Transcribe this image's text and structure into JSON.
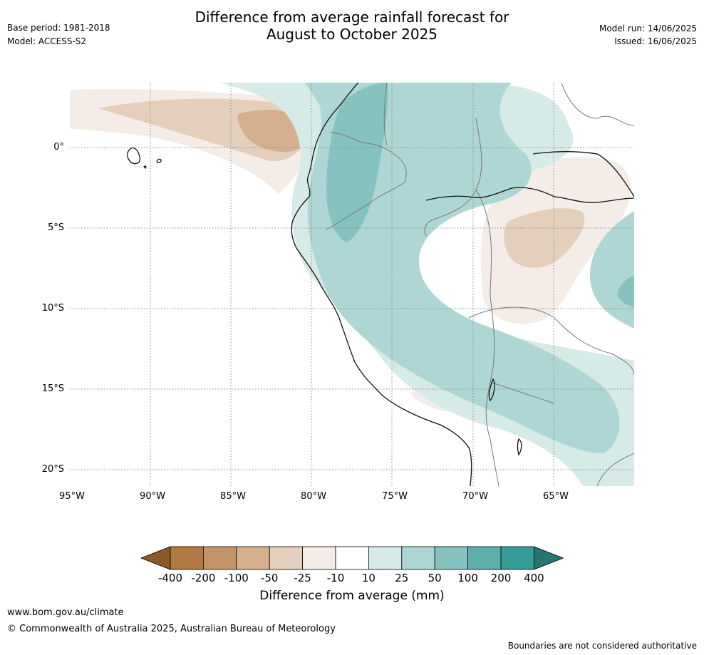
{
  "title_line1": "Difference from average rainfall forecast for",
  "title_line2": "August to October 2025",
  "base_period": "Base period: 1981-2018",
  "model": "Model: ACCESS-S2",
  "model_run": "Model run: 14/06/2025",
  "issued": "Issued: 16/06/2025",
  "lat_labels": [
    "0°",
    "5°S",
    "10°S",
    "15°S",
    "20°S"
  ],
  "lon_labels": [
    "95°W",
    "90°W",
    "85°W",
    "80°W",
    "75°W",
    "70°W",
    "65°W"
  ],
  "colorbar": {
    "title": "Difference from average (mm)",
    "labels": [
      "-400",
      "-200",
      "-100",
      "-50",
      "-25",
      "-10",
      "10",
      "25",
      "50",
      "100",
      "200",
      "400"
    ],
    "colors": [
      "#8c5a2a",
      "#b07a42",
      "#c49468",
      "#d4b08e",
      "#e4cfbd",
      "#f4ece6",
      "#ffffff",
      "#d6eae8",
      "#aed6d4",
      "#86c2c0",
      "#5eaeab",
      "#359c97",
      "#267571"
    ]
  },
  "footer": {
    "url": "www.bom.gov.au/climate",
    "copyright": "© Commonwealth of Australia 2025, Australian Bureau of Meteorology",
    "disclaimer": "Boundaries are not considered authoritative"
  }
}
